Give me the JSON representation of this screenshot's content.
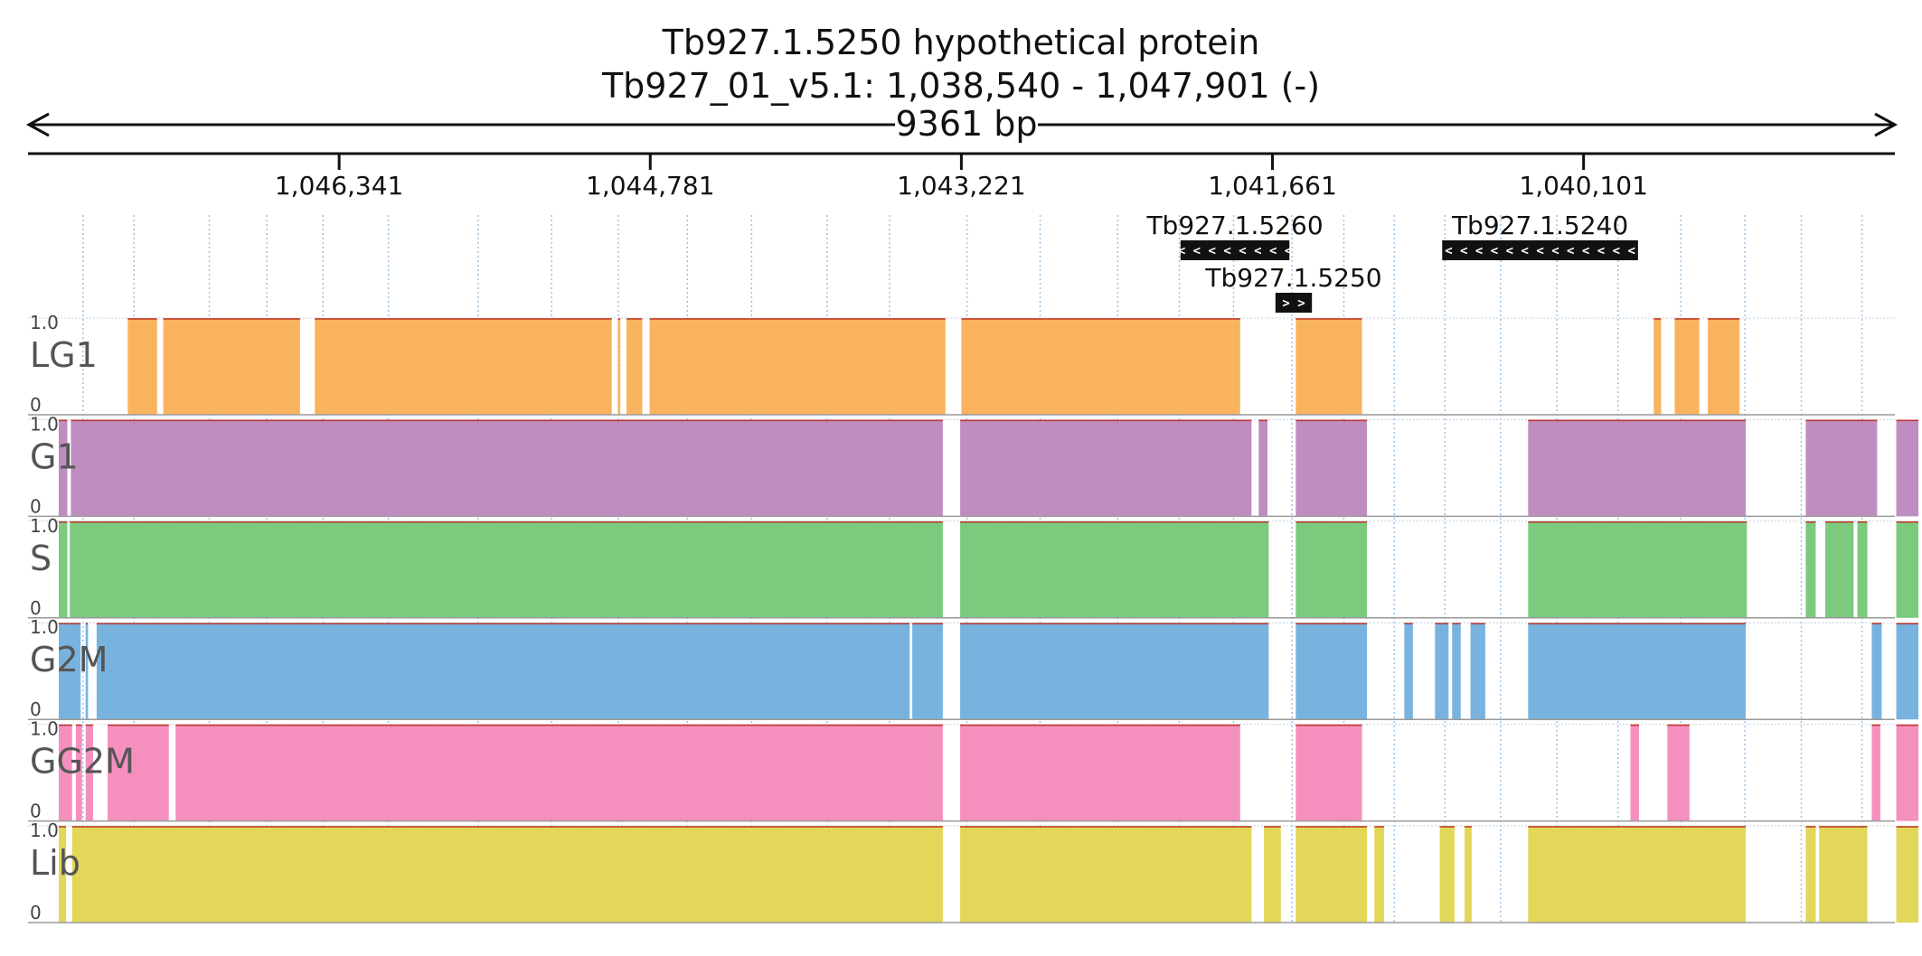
{
  "chart_data": {
    "type": "area",
    "title": "Tb927.1.5250  hypothetical protein",
    "subtitle": "Tb927_01_v5.1: 1,038,540 - 1,047,901 (-)",
    "span_label": "9361 bp",
    "xlim": [
      1047901,
      1038540
    ],
    "x_reversed": true,
    "ylim": [
      0,
      1.0
    ],
    "ytick_labels": [
      "1.0",
      "0"
    ],
    "xticks": [
      {
        "value": 1046341,
        "label": "1,046,341"
      },
      {
        "value": 1044781,
        "label": "1,044,781"
      },
      {
        "value": 1043221,
        "label": "1,043,221"
      },
      {
        "value": 1041661,
        "label": "1,041,661"
      },
      {
        "value": 1040101,
        "label": "1,040,101"
      }
    ],
    "genes": [
      {
        "name": "Tb927.1.5260",
        "start": 1042122,
        "end": 1041576,
        "strand": "-",
        "arrows": "< < < < < < < <"
      },
      {
        "name": "Tb927.1.5240",
        "start": 1040810,
        "end": 1039828,
        "strand": "-",
        "arrows": "< < < < < < < < < < < < <"
      },
      {
        "name": "Tb927.1.5250",
        "start": 1041646,
        "end": 1041463,
        "strand": "+",
        "arrows": "> >"
      }
    ],
    "gridlines": [
      1047625,
      1047370,
      1046992,
      1046704,
      1046422,
      1046094,
      1045644,
      1045276,
      1044941,
      1044595,
      1044273,
      1043894,
      1043581,
      1043193,
      1042826,
      1042437,
      1042128,
      1041856,
      1041563,
      1041303,
      1041050,
      1040796,
      1040517,
      1040235,
      1039928,
      1039613,
      1039292,
      1039009,
      1038705
    ],
    "series": [
      {
        "name": "LG1",
        "color": "#F9B35E",
        "segments": [
          [
            1047401,
            1047254
          ],
          [
            1047223,
            1046537
          ],
          [
            1046463,
            1044974
          ],
          [
            1044943,
            1044931
          ],
          [
            1044900,
            1044821
          ],
          [
            1044784,
            1043301
          ],
          [
            1043221,
            1041823
          ],
          [
            1041544,
            1041212
          ],
          [
            1039749,
            1039712
          ],
          [
            1039644,
            1039521
          ],
          [
            1039478,
            1039319
          ]
        ]
      },
      {
        "name": "G1",
        "color": "#C08DC0",
        "segments": [
          [
            1047747,
            1047704
          ],
          [
            1047686,
            1043314
          ],
          [
            1043227,
            1041766
          ],
          [
            1041730,
            1041686
          ],
          [
            1041544,
            1041187
          ],
          [
            1040379,
            1039288
          ],
          [
            1038987,
            1038629
          ],
          [
            1038533,
            1038422
          ]
        ]
      },
      {
        "name": "S",
        "color": "#7CCA7E",
        "segments": [
          [
            1047747,
            1047704
          ],
          [
            1047692,
            1043314
          ],
          [
            1043227,
            1041680
          ],
          [
            1041544,
            1041187
          ],
          [
            1040379,
            1039282
          ],
          [
            1038987,
            1038937
          ],
          [
            1038889,
            1038747
          ],
          [
            1038728,
            1038678
          ],
          [
            1038533,
            1038422
          ]
        ]
      },
      {
        "name": "G2M",
        "color": "#78B3E0",
        "segments": [
          [
            1047747,
            1047637
          ],
          [
            1047612,
            1047600
          ],
          [
            1047557,
            1043480
          ],
          [
            1043467,
            1043314
          ],
          [
            1043227,
            1041680
          ],
          [
            1041544,
            1041187
          ],
          [
            1041000,
            1040957
          ],
          [
            1040846,
            1040778
          ],
          [
            1040760,
            1040717
          ],
          [
            1040668,
            1040594
          ],
          [
            1040379,
            1039288
          ],
          [
            1038656,
            1038606
          ],
          [
            1038533,
            1038422
          ]
        ]
      },
      {
        "name": "GG2M",
        "color": "#F590BE",
        "segments": [
          [
            1047747,
            1047680
          ],
          [
            1047661,
            1047630
          ],
          [
            1047612,
            1047575
          ],
          [
            1047502,
            1047195
          ],
          [
            1047161,
            1043314
          ],
          [
            1043227,
            1041823
          ],
          [
            1041544,
            1041212
          ],
          [
            1039866,
            1039823
          ],
          [
            1039681,
            1039570
          ],
          [
            1038656,
            1038613
          ],
          [
            1038533,
            1038422
          ]
        ]
      },
      {
        "name": "Lib",
        "color": "#E3D75A",
        "segments": [
          [
            1047747,
            1047710
          ],
          [
            1047680,
            1043314
          ],
          [
            1043227,
            1041766
          ],
          [
            1041704,
            1041619
          ],
          [
            1041544,
            1041187
          ],
          [
            1041150,
            1041101
          ],
          [
            1040822,
            1040748
          ],
          [
            1040698,
            1040662
          ],
          [
            1040379,
            1039288
          ],
          [
            1038987,
            1038937
          ],
          [
            1038920,
            1038678
          ],
          [
            1038533,
            1038422
          ]
        ]
      }
    ]
  }
}
